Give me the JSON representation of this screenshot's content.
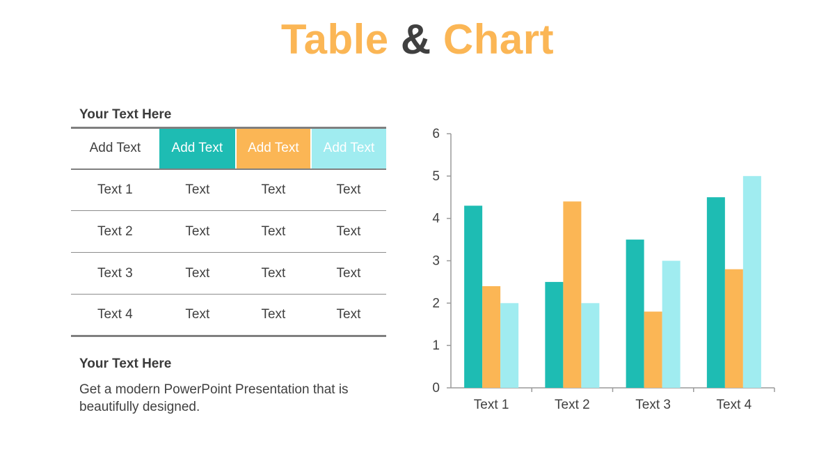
{
  "slide": {
    "title_part1": "Table",
    "title_part2": "&",
    "title_part3": "Chart"
  },
  "table": {
    "heading": "Your Text  Here",
    "headers": [
      "Add Text",
      "Add Text",
      "Add Text",
      "Add Text"
    ],
    "rows": [
      [
        "Text  1",
        "Text",
        "Text",
        "Text"
      ],
      [
        "Text  2",
        "Text",
        "Text",
        "Text"
      ],
      [
        "Text  3",
        "Text",
        "Text",
        "Text"
      ],
      [
        "Text  4",
        "Text",
        "Text",
        "Text"
      ]
    ]
  },
  "text_block": {
    "heading": "Your Text  Here",
    "body": "Get a modern PowerPoint  Presentation that is beautifully designed."
  },
  "colors": {
    "teal": "#1ebcb3",
    "orange": "#fbb655",
    "light_cyan": "#a0ecf0",
    "text_dark": "#404040",
    "axis": "#9a9a9a"
  },
  "chart_data": {
    "type": "bar",
    "categories": [
      "Text 1",
      "Text 2",
      "Text 3",
      "Text 4"
    ],
    "series": [
      {
        "values": [
          4.3,
          2.5,
          3.5,
          4.5
        ],
        "color": "#1ebcb3"
      },
      {
        "values": [
          2.4,
          4.4,
          1.8,
          2.8
        ],
        "color": "#fbb655"
      },
      {
        "values": [
          2.0,
          2.0,
          3.0,
          5.0
        ],
        "color": "#a0ecf0"
      }
    ],
    "yticks": [
      0,
      1,
      2,
      3,
      4,
      5,
      6
    ],
    "ylim": [
      0,
      6
    ],
    "title": "",
    "xlabel": "",
    "ylabel": "",
    "grid": false,
    "legend": "none"
  }
}
